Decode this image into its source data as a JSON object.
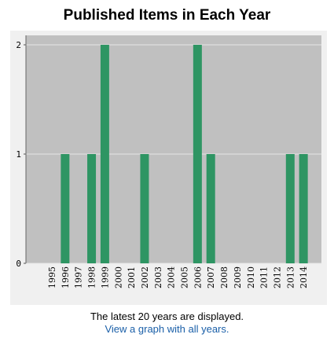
{
  "chart_data": {
    "type": "bar",
    "title": "Published Items in Each Year",
    "categories": [
      "1995",
      "1996",
      "1997",
      "1998",
      "1999",
      "2000",
      "2001",
      "2002",
      "2003",
      "2004",
      "2005",
      "2006",
      "2007",
      "2008",
      "2009",
      "2010",
      "2011",
      "2012",
      "2013",
      "2014"
    ],
    "values": [
      0,
      1,
      0,
      1,
      2,
      0,
      0,
      1,
      0,
      0,
      0,
      2,
      1,
      0,
      0,
      0,
      0,
      0,
      1,
      1
    ],
    "xlabel": "",
    "ylabel": "",
    "ylim": [
      0,
      2
    ],
    "yticks": [
      "0",
      "1",
      "2"
    ],
    "grid": true,
    "colors": {
      "bar": "#2e9563",
      "plot_bg": "#c0c0c0",
      "grid": "#e6e6e6"
    }
  },
  "footer": {
    "note": "The latest 20 years are displayed.",
    "link": "View a graph with all years."
  }
}
